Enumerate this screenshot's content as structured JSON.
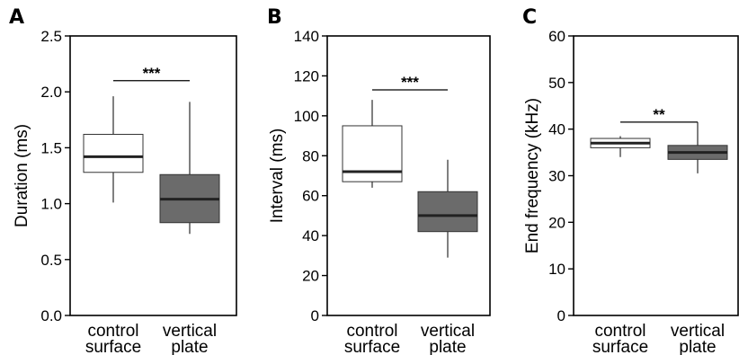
{
  "chart_data": [
    {
      "type": "boxplot",
      "panel": "A",
      "ylabel": "Duration (ms)",
      "ylim": [
        0.0,
        2.5
      ],
      "yticks": [
        "0.0",
        "0.5",
        "1.0",
        "1.5",
        "2.0",
        "2.5"
      ],
      "categories": [
        [
          "control",
          "surface"
        ],
        [
          "vertical",
          "plate"
        ]
      ],
      "boxes": [
        {
          "q1": 1.28,
          "median": 1.42,
          "q3": 1.62,
          "whisker_low": 1.01,
          "whisker_high": 1.96,
          "fill": "#ffffff"
        },
        {
          "q1": 0.83,
          "median": 1.04,
          "q3": 1.26,
          "whisker_low": 0.73,
          "whisker_high": 1.91,
          "fill": "#6b6b6b"
        }
      ],
      "significance": {
        "label": "***",
        "y": 2.1
      }
    },
    {
      "type": "boxplot",
      "panel": "B",
      "ylabel": "Interval (ms)",
      "ylim": [
        0,
        140
      ],
      "yticks": [
        "0",
        "20",
        "40",
        "60",
        "80",
        "100",
        "120",
        "140"
      ],
      "categories": [
        [
          "control",
          "surface"
        ],
        [
          "vertical",
          "plate"
        ]
      ],
      "boxes": [
        {
          "q1": 67,
          "median": 72,
          "q3": 95,
          "whisker_low": 64,
          "whisker_high": 108,
          "fill": "#ffffff"
        },
        {
          "q1": 42,
          "median": 50,
          "q3": 62,
          "whisker_low": 29,
          "whisker_high": 78,
          "fill": "#6b6b6b"
        }
      ],
      "significance": {
        "label": "***",
        "y": 113
      }
    },
    {
      "type": "boxplot",
      "panel": "C",
      "ylabel": "End frequency (kHz)",
      "ylim": [
        0,
        60
      ],
      "yticks": [
        "0",
        "10",
        "20",
        "30",
        "40",
        "50",
        "60"
      ],
      "categories": [
        [
          "control",
          "surface"
        ],
        [
          "vertical",
          "plate"
        ]
      ],
      "boxes": [
        {
          "q1": 36.0,
          "median": 37.0,
          "q3": 38.0,
          "whisker_low": 34.0,
          "whisker_high": 38.5,
          "fill": "#ffffff"
        },
        {
          "q1": 33.5,
          "median": 35.0,
          "q3": 36.5,
          "whisker_low": 30.5,
          "whisker_high": 41.5,
          "fill": "#6b6b6b"
        }
      ],
      "significance": {
        "label": "**",
        "y": 41.5
      }
    }
  ]
}
